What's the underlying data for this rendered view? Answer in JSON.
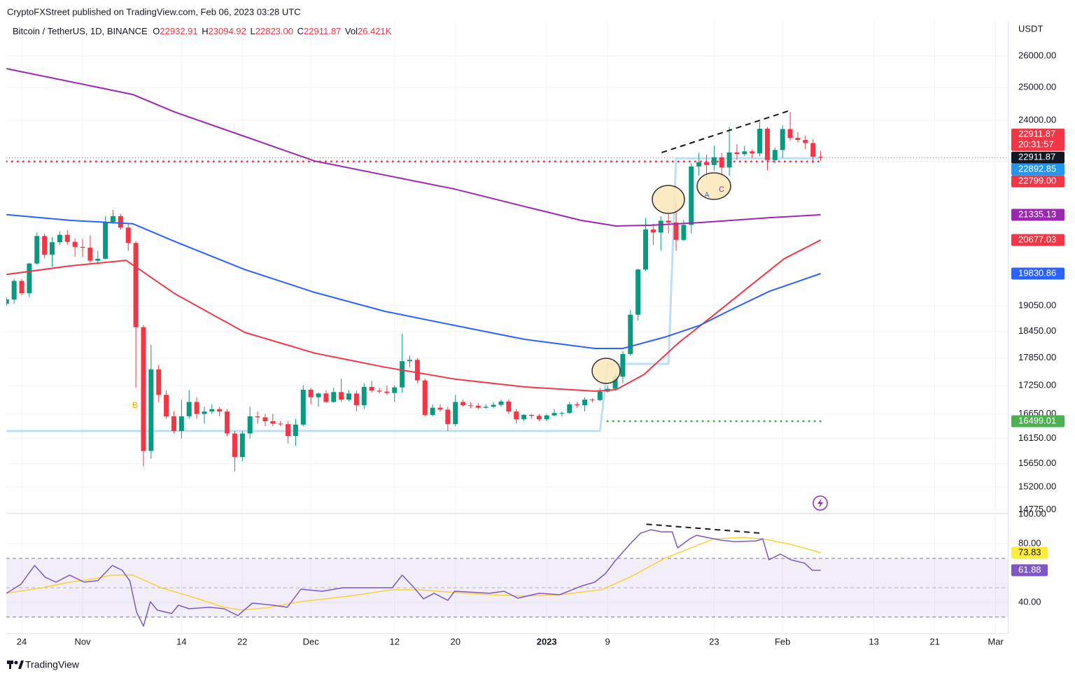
{
  "header": "CryptoFXStreet published on TradingView.com, Feb 06, 2023 03:28 UTC",
  "footer": "TradingView",
  "chart_data": [
    {
      "type": "candlestick",
      "title": "Bitcoin / TetherUS, 1D, BINANCE",
      "unit": "USDT",
      "legend": [
        {
          "key": "O",
          "text": "22932.91"
        },
        {
          "key": "H",
          "text": "23094.92"
        },
        {
          "key": "L",
          "text": "22823.00"
        },
        {
          "key": "C",
          "text": "22911.87"
        },
        {
          "key": "Vol",
          "text": "26.421K"
        }
      ],
      "up_color": "#089981",
      "down_color": "#f23645",
      "log_scale": true,
      "grid": true,
      "xlim": [
        0,
        131.6
      ],
      "ylim": [
        14720,
        27160
      ],
      "xticks": [
        {
          "value": 2,
          "label": "24"
        },
        {
          "value": 10,
          "label": "Nov"
        },
        {
          "value": 23,
          "label": "14"
        },
        {
          "value": 31,
          "label": "22"
        },
        {
          "value": 40,
          "label": "Dec"
        },
        {
          "value": 51,
          "label": "12"
        },
        {
          "value": 59,
          "label": "20"
        },
        {
          "value": 71,
          "label": "2023"
        },
        {
          "value": 79,
          "label": "9"
        },
        {
          "value": 93,
          "label": "23"
        },
        {
          "value": 102,
          "label": "Feb"
        },
        {
          "value": 114,
          "label": "13"
        },
        {
          "value": 122,
          "label": "21"
        },
        {
          "value": 130,
          "label": "Mar"
        }
      ],
      "yticks": [
        {
          "value": 26000,
          "label": "26000.00"
        },
        {
          "value": 25000,
          "label": "25000.00"
        },
        {
          "value": 24000,
          "label": "24000.00"
        },
        {
          "value": 19050,
          "label": "19050.00"
        },
        {
          "value": 18450,
          "label": "18450.00"
        },
        {
          "value": 17850,
          "label": "17850.00"
        },
        {
          "value": 17250,
          "label": "17250.00"
        },
        {
          "value": 16650,
          "label": "16650.00"
        },
        {
          "value": 16150,
          "label": "16150.00"
        },
        {
          "value": 15650,
          "label": "15650.00"
        },
        {
          "value": 15200,
          "label": "15200.00"
        },
        {
          "value": 14775,
          "label": "14775.00"
        }
      ],
      "x": [
        0,
        1,
        2,
        3,
        4,
        5,
        6,
        7,
        8,
        9,
        10,
        11,
        12,
        13,
        14,
        15,
        16,
        17,
        18,
        19,
        20,
        21,
        22,
        23,
        24,
        25,
        26,
        27,
        28,
        29,
        30,
        31,
        32,
        33,
        34,
        35,
        36,
        37,
        38,
        39,
        40,
        41,
        42,
        43,
        44,
        45,
        46,
        47,
        48,
        49,
        50,
        51,
        52,
        53,
        54,
        55,
        56,
        57,
        58,
        59,
        60,
        61,
        62,
        63,
        64,
        65,
        66,
        67,
        68,
        69,
        70,
        71,
        72,
        73,
        74,
        75,
        76,
        77,
        78,
        79,
        80,
        81,
        82,
        83,
        84,
        85,
        86,
        87,
        88,
        89,
        90,
        91,
        92,
        93,
        94,
        95,
        96,
        97,
        98,
        99,
        100,
        101,
        102,
        103,
        104,
        105,
        106,
        107
      ],
      "open": [
        19100,
        19200,
        19650,
        19350,
        20080,
        20780,
        20300,
        20620,
        20810,
        20630,
        20500,
        20480,
        20150,
        20200,
        21150,
        21300,
        21000,
        20600,
        18550,
        15900,
        17600,
        17050,
        16600,
        16300,
        16600,
        16900,
        16650,
        16700,
        16750,
        16700,
        16250,
        15780,
        16250,
        16600,
        16580,
        16500,
        16450,
        16440,
        16200,
        16430,
        17160,
        17000,
        17080,
        16900,
        17110,
        16950,
        17080,
        16830,
        17220,
        17140,
        17120,
        17090,
        17210,
        17780,
        17810,
        17360,
        16630,
        16780,
        16740,
        16440,
        16900,
        16830,
        16820,
        16780,
        16800,
        16840,
        16910,
        16700,
        16540,
        16630,
        16610,
        16540,
        16620,
        16670,
        16670,
        16850,
        16830,
        16950,
        16940,
        17120,
        17180,
        17440,
        17940,
        18840,
        19930,
        20950,
        20870,
        21180,
        21130,
        20680,
        21070,
        22660,
        22780,
        22700,
        22920,
        22630,
        23060,
        23010,
        23090,
        23030,
        23750,
        22840,
        23130,
        23740,
        23480,
        23420,
        23330,
        22932.91
      ],
      "high": [
        19250,
        19700,
        19700,
        20100,
        20880,
        20850,
        20750,
        20900,
        20930,
        20720,
        20700,
        20800,
        20400,
        21300,
        21470,
        21360,
        21100,
        20650,
        18600,
        18150,
        17700,
        17150,
        16700,
        16950,
        17150,
        17000,
        16800,
        16850,
        16800,
        16750,
        16300,
        16300,
        16800,
        16700,
        16650,
        16650,
        16500,
        16500,
        16550,
        17250,
        17200,
        17100,
        17150,
        17200,
        17400,
        17150,
        17140,
        17300,
        17350,
        17200,
        17250,
        17250,
        18400,
        17900,
        17850,
        17400,
        16850,
        16850,
        16800,
        17050,
        16950,
        16900,
        16880,
        16850,
        16900,
        16950,
        16950,
        16750,
        16650,
        16650,
        16650,
        16650,
        16750,
        16700,
        16900,
        16900,
        17000,
        16980,
        17200,
        17250,
        17500,
        18000,
        18950,
        19950,
        21250,
        21100,
        21300,
        21450,
        21650,
        21200,
        22750,
        23050,
        23000,
        23250,
        23050,
        23800,
        23300,
        23250,
        23150,
        23950,
        23800,
        23200,
        23850,
        24250,
        23650,
        23550,
        23450,
        23094.92
      ],
      "low": [
        19050,
        19100,
        19300,
        19250,
        20050,
        20200,
        20000,
        20550,
        20550,
        20250,
        20250,
        20100,
        20050,
        20180,
        21100,
        20950,
        20400,
        17200,
        15600,
        15750,
        16900,
        16550,
        16250,
        16150,
        16550,
        16550,
        16450,
        16650,
        16600,
        16200,
        15500,
        15700,
        16150,
        16450,
        16400,
        16400,
        16400,
        16050,
        16000,
        16400,
        16850,
        16800,
        16880,
        16880,
        16900,
        16920,
        16700,
        16750,
        17100,
        17080,
        17050,
        16900,
        17100,
        17650,
        17300,
        16600,
        16600,
        16700,
        16300,
        16400,
        16800,
        16770,
        16750,
        16760,
        16780,
        16800,
        16650,
        16450,
        16500,
        16550,
        16500,
        16500,
        16600,
        16600,
        16650,
        16780,
        16700,
        16900,
        16920,
        17100,
        17150,
        17300,
        17900,
        18700,
        19900,
        20550,
        20400,
        20850,
        20400,
        20650,
        20850,
        22400,
        22300,
        22550,
        22350,
        22400,
        22850,
        22950,
        22900,
        22950,
        22550,
        22750,
        22900,
        23400,
        23350,
        23150,
        22750,
        22823.0
      ],
      "close": [
        19200,
        19650,
        19350,
        20080,
        20780,
        20300,
        20620,
        20810,
        20630,
        20500,
        20480,
        20150,
        20200,
        21150,
        21300,
        21000,
        20600,
        18550,
        15900,
        17600,
        17050,
        16600,
        16300,
        16600,
        16900,
        16650,
        16700,
        16750,
        16700,
        16250,
        15780,
        16250,
        16600,
        16580,
        16500,
        16450,
        16440,
        16200,
        16430,
        17160,
        17000,
        17080,
        16900,
        17110,
        16950,
        17080,
        16830,
        17220,
        17140,
        17120,
        17090,
        17210,
        17780,
        17810,
        17360,
        16630,
        16780,
        16740,
        16440,
        16900,
        16830,
        16820,
        16780,
        16800,
        16840,
        16910,
        16700,
        16540,
        16630,
        16610,
        16540,
        16620,
        16670,
        16670,
        16850,
        16830,
        16950,
        16940,
        17120,
        17180,
        17440,
        17940,
        18840,
        19930,
        20950,
        20870,
        21180,
        21130,
        20680,
        21070,
        22660,
        22780,
        22700,
        22920,
        22630,
        23060,
        23010,
        23090,
        23030,
        23750,
        22840,
        23130,
        23740,
        23480,
        23420,
        23330,
        22932.91,
        22911.87
      ],
      "series": [
        {
          "color": "#9c27b0",
          "x": [
            0,
            13,
            16.6,
            22.1,
            31.3,
            40.5,
            49.7,
            58.9,
            68.1,
            75.5,
            80.1,
            84.7,
            91.1,
            100.3,
            107
          ],
          "values": [
            25595,
            24958,
            24784,
            24249,
            23522,
            22815,
            22419,
            22032,
            21557,
            21190,
            21040,
            21060,
            21130,
            21260,
            21335.13
          ]
        },
        {
          "color": "#f23645",
          "x": [
            0,
            8.3,
            15.7,
            17.5,
            22.1,
            31.3,
            40.5,
            49.7,
            58.9,
            68.1,
            77.3,
            80.1,
            83.8,
            88.4,
            93,
            97.6,
            102.2,
            107
          ],
          "values": [
            19810,
            20020,
            20160,
            19930,
            19340,
            18430,
            17960,
            17650,
            17390,
            17220,
            17130,
            17160,
            17490,
            18200,
            18840,
            19510,
            20200,
            20677.03
          ]
        },
        {
          "color": "#2962ff",
          "x": [
            0,
            8.3,
            16.6,
            22.1,
            31.3,
            40.5,
            49.7,
            58.9,
            68.1,
            77.3,
            81,
            86.5,
            91.1,
            95.7,
            100.3,
            107
          ],
          "values": [
            21340,
            21190,
            21100,
            20640,
            19930,
            19370,
            18920,
            18590,
            18270,
            18065,
            18065,
            18320,
            18590,
            19000,
            19400,
            19830.86
          ]
        },
        {
          "color": "#bbdefb",
          "x": [
            0,
            78,
            79,
            87,
            88,
            107
          ],
          "values": [
            16300,
            16300,
            17720,
            17720,
            22892.85,
            22892.85
          ]
        }
      ],
      "levels": [
        {
          "value": 22911.87,
          "color": "#f23645",
          "countdown": "20:31:57"
        },
        {
          "value": 22799,
          "label": "22799.00",
          "color": "#f23645",
          "x": [
            0,
            107
          ]
        },
        {
          "value": 16499.01,
          "color": "#4caf50",
          "x": [
            79,
            107
          ]
        }
      ],
      "trendlines": [
        {
          "x": [
            86.1,
            102.9
          ],
          "values": [
            23054,
            24292
          ]
        }
      ],
      "annotations": [
        "B",
        "A",
        "C"
      ]
    },
    {
      "type": "line",
      "ylim": [
        19,
        101
      ],
      "yticks": [
        {
          "value": 100,
          "label": "100.00"
        },
        {
          "value": 80,
          "label": "80.00"
        },
        {
          "value": 40,
          "label": "40.00"
        }
      ],
      "bands": [
        30,
        70
      ],
      "midline": 50,
      "band_color": "#7e57c2",
      "series": [
        {
          "color": "#7e57c2",
          "x": [
            0,
            1.9,
            3.7,
            5.1,
            6.5,
            8.3,
            10.2,
            12,
            13.9,
            15.2,
            16.2,
            17.1,
            18,
            18.9,
            19.8,
            21.7,
            22.6,
            24,
            26.7,
            28.6,
            30.4,
            32.3,
            35,
            36.9,
            38.7,
            41.5,
            44.2,
            47,
            50.7,
            52,
            53.4,
            54.8,
            56.2,
            58,
            58.9,
            63.5,
            65.4,
            67.2,
            70,
            72.7,
            75.5,
            77.3,
            78.7,
            80.1,
            81.9,
            83.3,
            84.7,
            86.1,
            87.5,
            88.2,
            89.8,
            90.7,
            92,
            93.9,
            95.7,
            98.5,
            99.4,
            100.2,
            101.7,
            103.1,
            104.9,
            105.9,
            107
          ],
          "values": [
            46.2,
            52.4,
            65.2,
            57.1,
            53.8,
            58.6,
            53.8,
            54.8,
            65.2,
            61.9,
            54.8,
            33.3,
            23.8,
            40.5,
            34.8,
            32.4,
            38.1,
            35.7,
            36.7,
            35.7,
            31.0,
            39.5,
            38.1,
            36.7,
            49.0,
            47.6,
            50.0,
            50.0,
            50.0,
            58.6,
            51.0,
            42.4,
            46.2,
            41.4,
            47.6,
            46.2,
            47.6,
            42.9,
            46.2,
            45.2,
            51.0,
            53.8,
            59.5,
            69.0,
            79.5,
            87.1,
            89.5,
            88.1,
            88.1,
            77.1,
            83.3,
            85.7,
            84.3,
            82.4,
            81.4,
            81.9,
            83.3,
            69.0,
            72.9,
            69.0,
            66.7,
            61.9,
            61.88
          ]
        },
        {
          "color": "#f7d23b",
          "x": [
            0,
            4.7,
            8.3,
            11.1,
            13.9,
            16.6,
            20.3,
            24.9,
            28.6,
            30.9,
            34.1,
            38.7,
            45.1,
            50.7,
            54.3,
            58.9,
            63.5,
            68.1,
            72.7,
            78.2,
            81.9,
            86.5,
            91.1,
            93,
            96.7,
            99.4,
            103.1,
            107
          ],
          "values": [
            46.2,
            50,
            53.8,
            55.7,
            58.6,
            58.6,
            50,
            42.9,
            36.7,
            34.8,
            36.2,
            40.5,
            44.3,
            48.6,
            48.6,
            46.7,
            45.2,
            44.3,
            45.2,
            48.6,
            57.1,
            70,
            79.5,
            83.3,
            84.3,
            83.3,
            79.5,
            73.83
          ]
        }
      ],
      "trendlines": [
        {
          "x": [
            84.1,
            99.4
          ],
          "values": [
            93.3,
            87.1
          ]
        }
      ]
    }
  ]
}
